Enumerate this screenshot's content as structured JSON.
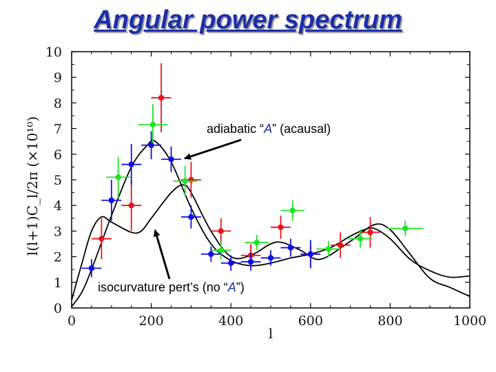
{
  "slide": {
    "title": "Angular power spectrum"
  },
  "colors": {
    "title": "#1c2fa8",
    "red": "#e8141c",
    "green": "#22e02a",
    "blue": "#1010e0",
    "curve": "#000000"
  },
  "chart_data": {
    "type": "scatter",
    "title": "",
    "xlabel": "l",
    "ylabel": "l(l+1)C_l/2π (×10¹⁰)",
    "xlim": [
      0,
      1000
    ],
    "ylim": [
      0,
      10
    ],
    "xticks": [
      0,
      200,
      400,
      600,
      800,
      1000
    ],
    "yticks": [
      0,
      1,
      2,
      3,
      4,
      5,
      6,
      7,
      8,
      9,
      10
    ],
    "grid": false,
    "series": [
      {
        "color": "red",
        "points": [
          {
            "x": 75,
            "y": 2.7,
            "xerr": 25,
            "yerr": 0.8
          },
          {
            "x": 150,
            "y": 4.0,
            "xerr": 25,
            "yerr": 1.0
          },
          {
            "x": 225,
            "y": 8.2,
            "xerr": 25,
            "yerr": 1.35
          },
          {
            "x": 300,
            "y": 5.0,
            "xerr": 25,
            "yerr": 0.7
          },
          {
            "x": 375,
            "y": 3.0,
            "xerr": 25,
            "yerr": 0.5
          },
          {
            "x": 450,
            "y": 2.05,
            "xerr": 25,
            "yerr": 0.45
          },
          {
            "x": 525,
            "y": 3.15,
            "xerr": 25,
            "yerr": 0.45
          },
          {
            "x": 600,
            "y": 2.1,
            "xerr": 25,
            "yerr": 0.5
          },
          {
            "x": 675,
            "y": 2.45,
            "xerr": 25,
            "yerr": 0.5
          },
          {
            "x": 750,
            "y": 2.95,
            "xerr": 25,
            "yerr": 0.6
          }
        ]
      },
      {
        "color": "green",
        "points": [
          {
            "x": 117,
            "y": 5.1,
            "xerr": 30,
            "yerr": 0.8
          },
          {
            "x": 204,
            "y": 7.15,
            "xerr": 37,
            "yerr": 0.8
          },
          {
            "x": 285,
            "y": 4.95,
            "xerr": 30,
            "yerr": 0.6
          },
          {
            "x": 375,
            "y": 2.25,
            "xerr": 25,
            "yerr": 0.35
          },
          {
            "x": 465,
            "y": 2.55,
            "xerr": 30,
            "yerr": 0.3
          },
          {
            "x": 555,
            "y": 3.8,
            "xerr": 30,
            "yerr": 0.4
          },
          {
            "x": 645,
            "y": 2.3,
            "xerr": 30,
            "yerr": 0.3
          },
          {
            "x": 725,
            "y": 2.7,
            "xerr": 30,
            "yerr": 0.35
          },
          {
            "x": 838,
            "y": 3.1,
            "xerr": 45,
            "yerr": 0.3
          }
        ]
      },
      {
        "color": "blue",
        "points": [
          {
            "x": 50,
            "y": 1.55,
            "xerr": 25,
            "yerr": 0.35
          },
          {
            "x": 100,
            "y": 4.2,
            "xerr": 25,
            "yerr": 0.8
          },
          {
            "x": 150,
            "y": 5.6,
            "xerr": 25,
            "yerr": 0.8
          },
          {
            "x": 200,
            "y": 6.35,
            "xerr": 25,
            "yerr": 0.55
          },
          {
            "x": 250,
            "y": 5.8,
            "xerr": 25,
            "yerr": 0.5
          },
          {
            "x": 300,
            "y": 3.55,
            "xerr": 25,
            "yerr": 0.45
          },
          {
            "x": 350,
            "y": 2.1,
            "xerr": 25,
            "yerr": 0.3
          },
          {
            "x": 400,
            "y": 1.75,
            "xerr": 25,
            "yerr": 0.3
          },
          {
            "x": 450,
            "y": 1.8,
            "xerr": 25,
            "yerr": 0.35
          },
          {
            "x": 500,
            "y": 1.95,
            "xerr": 25,
            "yerr": 0.3
          },
          {
            "x": 550,
            "y": 2.35,
            "xerr": 25,
            "yerr": 0.35
          },
          {
            "x": 600,
            "y": 2.1,
            "xerr": 25,
            "yerr": 0.55
          }
        ]
      }
    ],
    "curves": [
      {
        "label": "adiabatic",
        "points": [
          [
            0,
            0.05
          ],
          [
            25,
            0.6
          ],
          [
            50,
            1.5
          ],
          [
            100,
            3.6
          ],
          [
            150,
            5.5
          ],
          [
            190,
            6.35
          ],
          [
            210,
            6.5
          ],
          [
            250,
            5.7
          ],
          [
            300,
            3.9
          ],
          [
            350,
            2.5
          ],
          [
            400,
            1.85
          ],
          [
            450,
            1.65
          ],
          [
            500,
            1.75
          ],
          [
            550,
            1.95
          ],
          [
            600,
            2.1
          ],
          [
            650,
            2.35
          ],
          [
            700,
            2.8
          ],
          [
            735,
            3.05
          ],
          [
            760,
            3.1
          ],
          [
            800,
            2.7
          ],
          [
            850,
            1.9
          ],
          [
            900,
            1.45
          ],
          [
            950,
            1.2
          ],
          [
            1000,
            1.25
          ]
        ]
      },
      {
        "label": "isocurvature",
        "points": [
          [
            0,
            0.3
          ],
          [
            25,
            1.7
          ],
          [
            50,
            3.0
          ],
          [
            75,
            3.55
          ],
          [
            100,
            3.35
          ],
          [
            150,
            2.95
          ],
          [
            175,
            3.0
          ],
          [
            200,
            3.5
          ],
          [
            250,
            4.5
          ],
          [
            280,
            4.8
          ],
          [
            300,
            4.5
          ],
          [
            350,
            3.0
          ],
          [
            400,
            2.0
          ],
          [
            450,
            2.05
          ],
          [
            500,
            2.5
          ],
          [
            530,
            2.55
          ],
          [
            575,
            2.25
          ],
          [
            625,
            1.9
          ],
          [
            700,
            2.6
          ],
          [
            760,
            3.25
          ],
          [
            800,
            3.05
          ],
          [
            850,
            2.1
          ],
          [
            900,
            1.15
          ],
          [
            950,
            0.8
          ],
          [
            1000,
            0.45
          ]
        ]
      }
    ],
    "annotations": [
      {
        "text_before": "adiabatic “",
        "text_em": "A",
        "text_after": "” (acausal)"
      },
      {
        "text_before": "isocurvature pert’s (no “",
        "text_em": "A",
        "text_after": "”)"
      }
    ]
  }
}
